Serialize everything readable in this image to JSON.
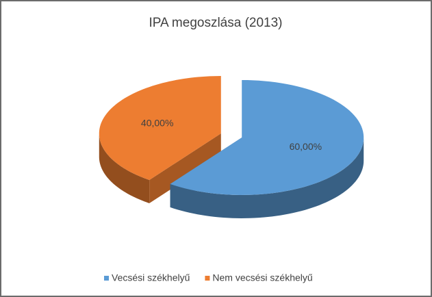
{
  "chart_data": {
    "type": "pie3d",
    "title": "IPA megoszlása (2013)",
    "categories": [
      "Vecsési székhelyű",
      "Nem vecsési székhelyű"
    ],
    "values": [
      60,
      40
    ],
    "value_labels": [
      "60,00%",
      "40,00%"
    ],
    "colors": [
      "#5b9bd5",
      "#ed7d31"
    ],
    "legend": "bottom"
  }
}
